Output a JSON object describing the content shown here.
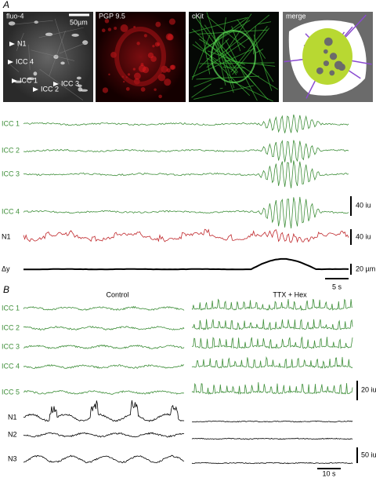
{
  "panel_a": {
    "label": "A",
    "images": [
      {
        "label": "fluo-4",
        "scale_bar": "50µm",
        "cells": [
          "N1",
          "ICC 4",
          "ICC 1",
          "ICC 2",
          "ICC 3"
        ]
      },
      {
        "label": "PGP 9.5"
      },
      {
        "label": "cKit"
      },
      {
        "label": "merge"
      }
    ],
    "traces": [
      "ICC 1",
      "ICC 2",
      "ICC 3",
      "ICC 4",
      "N1",
      "Δy"
    ],
    "scale_bars": [
      "40 iu",
      "40 iu",
      "20 µm",
      "5 s"
    ]
  },
  "panel_b": {
    "label": "B",
    "conditions": [
      "Control",
      "TTX + Hex"
    ],
    "traces": [
      "ICC 1",
      "ICC 2",
      "ICC 3",
      "ICC 4",
      "ICC 5",
      "N1",
      "N2",
      "N3"
    ],
    "scale_bars": [
      "20 iu",
      "50 iu",
      "10 s"
    ]
  }
}
